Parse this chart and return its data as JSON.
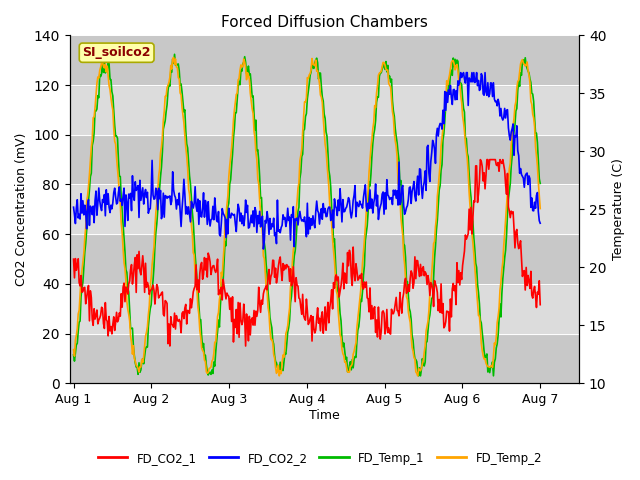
{
  "title": "Forced Diffusion Chambers",
  "ylabel_left": "CO2 Concentration (mV)",
  "ylabel_right": "Temperature (C)",
  "xlabel": "Time",
  "ylim_left": [
    0,
    140
  ],
  "ylim_right": [
    10,
    40
  ],
  "x_ticks": [
    "Aug 1",
    "Aug 2",
    "Aug 3",
    "Aug 4",
    "Aug 5",
    "Aug 6",
    "Aug 7"
  ],
  "annotation": "SI_soilco2",
  "annotation_color": "#8B0000",
  "annotation_bg": "#FFFFAA",
  "annotation_border": "#AAAA00",
  "series_colors": {
    "FD_CO2_1": "#FF0000",
    "FD_CO2_2": "#0000FF",
    "FD_Temp_1": "#00BB00",
    "FD_Temp_2": "#FFA500"
  },
  "band_colors": [
    "#C8C8C8",
    "#DCDCDC"
  ],
  "band_edges": [
    0,
    20,
    40,
    60,
    80,
    100,
    120,
    140
  ],
  "plot_bg": "#D8D8D8",
  "fig_bg": "#FFFFFF",
  "grid_color": "#FFFFFF",
  "linewidth": 1.2
}
